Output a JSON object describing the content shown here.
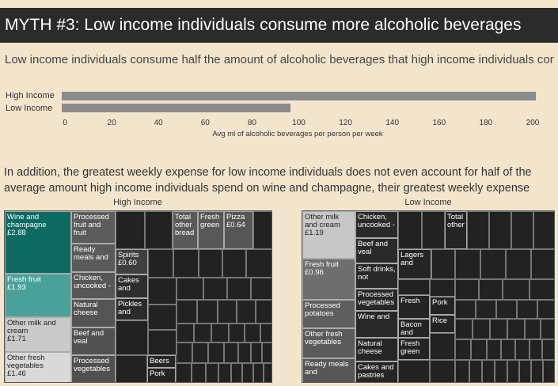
{
  "title": "MYTH #3: Low income individuals consume more alcoholic beverages",
  "subtitle": "Low income individuals consume half the amount of alcoholic beverages that high income individuals consu..",
  "paragraph": "In addition, the greatest weekly expense for low income individuals does not even account for half of the average amount high income individuals spend on wine and champagne, their greatest weekly expense",
  "chart_data": [
    {
      "type": "bar",
      "orientation": "horizontal",
      "categories": [
        "High Income",
        "Low Income"
      ],
      "values": [
        202,
        97
      ],
      "xlabel": "Avg ml of alcoholic beverages per person per week",
      "xlim": [
        0,
        200
      ],
      "xticks": [
        "0",
        "20",
        "40",
        "60",
        "80",
        "100",
        "120",
        "140",
        "160",
        "180",
        "200"
      ],
      "bar_color": "#8b8b8b"
    },
    {
      "type": "heatmap",
      "subtype": "treemap",
      "title": "High Income",
      "cells": [
        {
          "label": "Wine and champagne",
          "value_label": "£2.88",
          "color": "#0d6b62"
        },
        {
          "label": "Fresh fruit",
          "value_label": "£1.93",
          "color": "#4aa19a"
        },
        {
          "label": "Other milk and cream",
          "value_label": "£1.71",
          "color": "#c9c9c9"
        },
        {
          "label": "Other fresh vegetables",
          "value_label": "£1.46",
          "color": "#d9d9d9"
        },
        {
          "label": "Processed fruit and fruit",
          "value_label": "",
          "color": "#5c5c5c"
        },
        {
          "label": "Ready meals and",
          "value_label": "",
          "color": "#5a5a5a"
        },
        {
          "label": "Chicken, uncooked -",
          "value_label": "",
          "color": "#575757"
        },
        {
          "label": "Natural cheese",
          "value_label": "",
          "color": "#545454"
        },
        {
          "label": "Beef and veal",
          "value_label": "",
          "color": "#525252"
        },
        {
          "label": "Processed vegetables",
          "value_label": "",
          "color": "#505050"
        },
        {
          "label": "Total other bread",
          "value_label": "",
          "color": "#5a5a5a"
        },
        {
          "label": "Fresh green",
          "value_label": "",
          "color": "#585858"
        },
        {
          "label": "Pizza",
          "value_label": "£0.64",
          "color": "#565656"
        },
        {
          "label": "Spirits",
          "value_label": "£0.60",
          "color": "#404040"
        },
        {
          "label": "Cakes and",
          "value_label": "",
          "color": "#2e2e2e"
        },
        {
          "label": "Pickles and",
          "value_label": "",
          "color": "#2b2b2b"
        },
        {
          "label": "Beers",
          "value_label": "",
          "color": "#262626"
        },
        {
          "label": "Pork",
          "value_label": "",
          "color": "#252525"
        }
      ]
    },
    {
      "type": "heatmap",
      "subtype": "treemap",
      "title": "Low Income",
      "cells": [
        {
          "label": "Other milk and cream",
          "value_label": "£1.19",
          "color": "#c7c7c7"
        },
        {
          "label": "Fresh fruit",
          "value_label": "£0.96",
          "color": "#6e6e6e"
        },
        {
          "label": "Processed potatoes",
          "value_label": "",
          "color": "#5f5f5f"
        },
        {
          "label": "Other fresh vegetables",
          "value_label": "",
          "color": "#5b5b5b"
        },
        {
          "label": "Ready meals and",
          "value_label": "",
          "color": "#565656"
        },
        {
          "label": "Chicken, uncooked -",
          "value_label": "",
          "color": "#2a2a2a"
        },
        {
          "label": "Beef and veal",
          "value_label": "",
          "color": "#2a2a2a"
        },
        {
          "label": "Soft drinks, not",
          "value_label": "",
          "color": "#282828"
        },
        {
          "label": "Processed vegetables",
          "value_label": "",
          "color": "#282828"
        },
        {
          "label": "Wine and",
          "value_label": "",
          "color": "#272727"
        },
        {
          "label": "Natural cheese",
          "value_label": "",
          "color": "#262626"
        },
        {
          "label": "Cakes and pastries",
          "value_label": "",
          "color": "#262626"
        },
        {
          "label": "Lagers and",
          "value_label": "",
          "color": "#252525"
        },
        {
          "label": "Fresh",
          "value_label": "",
          "color": "#252525"
        },
        {
          "label": "Bacon and",
          "value_label": "",
          "color": "#242424"
        },
        {
          "label": "Fresh green",
          "value_label": "",
          "color": "#242424"
        },
        {
          "label": "Total other",
          "value_label": "",
          "color": "#242424"
        },
        {
          "label": "Pork",
          "value_label": "",
          "color": "#232323"
        },
        {
          "label": "Rice",
          "value_label": "",
          "color": "#232323"
        }
      ]
    }
  ]
}
